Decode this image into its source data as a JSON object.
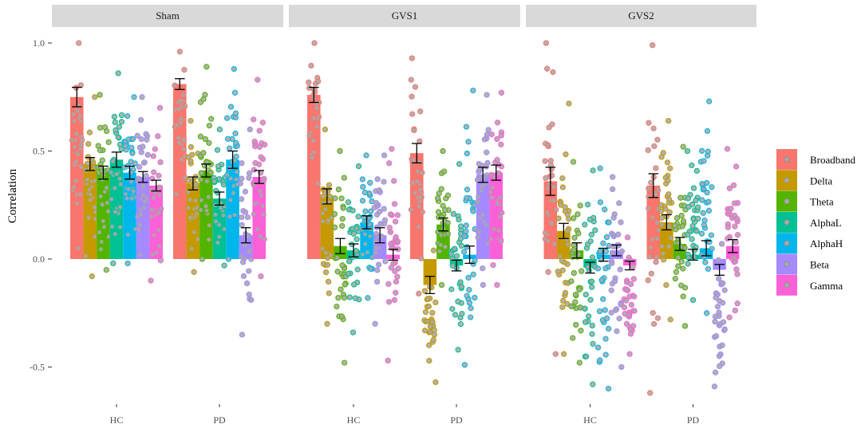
{
  "chart_data": {
    "type": "bar",
    "ylabel": "Correlation",
    "xlabel": "",
    "ylim": [
      -0.6,
      1.02
    ],
    "yticks": [
      -0.5,
      0.0,
      0.5,
      1.0
    ],
    "ytick_labels": [
      "-0.5",
      "0.0",
      "0.5",
      "1.0"
    ],
    "facets": [
      "Sham",
      "GVS1",
      "GVS2"
    ],
    "groups": [
      "HC",
      "PD"
    ],
    "bands": [
      "Broadband",
      "Delta",
      "Theta",
      "AlphaL",
      "AlphaH",
      "Beta",
      "Gamma"
    ],
    "colors": {
      "Broadband": "#F8766D",
      "Delta": "#C49A00",
      "Theta": "#53B400",
      "AlphaL": "#00C094",
      "AlphaH": "#00B6EB",
      "Beta": "#A58AFF",
      "Gamma": "#FB61D7"
    },
    "point_color": "#A9A9A9",
    "legend_position": "right",
    "series": [
      {
        "facet": "Sham",
        "group": "HC",
        "means": [
          0.75,
          0.44,
          0.4,
          0.46,
          0.4,
          0.38,
          0.34
        ],
        "errors": [
          0.045,
          0.03,
          0.03,
          0.035,
          0.03,
          0.025,
          0.025
        ],
        "ranges": [
          [
            0.05,
            1.0
          ],
          [
            -0.08,
            0.75
          ],
          [
            -0.05,
            0.76
          ],
          [
            -0.02,
            0.86
          ],
          [
            -0.02,
            0.75
          ],
          [
            0.02,
            0.75
          ],
          [
            -0.1,
            0.7
          ]
        ]
      },
      {
        "facet": "Sham",
        "group": "PD",
        "means": [
          0.81,
          0.35,
          0.41,
          0.28,
          0.46,
          0.11,
          0.38
        ],
        "errors": [
          0.025,
          0.03,
          0.03,
          0.03,
          0.04,
          0.035,
          0.03
        ],
        "ranges": [
          [
            0.3,
            0.96
          ],
          [
            -0.06,
            0.64
          ],
          [
            0.0,
            0.89
          ],
          [
            -0.03,
            0.6
          ],
          [
            0.0,
            0.88
          ],
          [
            -0.35,
            0.6
          ],
          [
            -0.08,
            0.83
          ]
        ]
      },
      {
        "facet": "GVS1",
        "group": "HC",
        "means": [
          0.76,
          0.29,
          0.06,
          0.04,
          0.17,
          0.11,
          0.02
        ],
        "errors": [
          0.035,
          0.035,
          0.035,
          0.03,
          0.03,
          0.035,
          0.025
        ],
        "ranges": [
          [
            0.35,
            1.0
          ],
          [
            -0.3,
            0.6
          ],
          [
            -0.48,
            0.5
          ],
          [
            -0.34,
            0.43
          ],
          [
            -0.18,
            0.48
          ],
          [
            -0.3,
            0.48
          ],
          [
            -0.47,
            0.51
          ]
        ]
      },
      {
        "facet": "GVS1",
        "group": "PD",
        "means": [
          0.49,
          -0.12,
          0.16,
          -0.03,
          0.02,
          0.39,
          0.4
        ],
        "errors": [
          0.045,
          0.04,
          0.03,
          0.025,
          0.04,
          0.035,
          0.035
        ],
        "ranges": [
          [
            -0.16,
            0.93
          ],
          [
            -0.57,
            0.04
          ],
          [
            -0.12,
            0.5
          ],
          [
            -0.42,
            0.44
          ],
          [
            -0.49,
            0.78
          ],
          [
            -0.12,
            0.76
          ],
          [
            -0.12,
            0.77
          ]
        ]
      },
      {
        "facet": "GVS2",
        "group": "HC",
        "means": [
          0.36,
          0.13,
          0.04,
          -0.04,
          0.02,
          0.04,
          -0.03
        ],
        "errors": [
          0.065,
          0.035,
          0.035,
          0.025,
          0.03,
          0.025,
          0.02
        ],
        "ranges": [
          [
            -0.44,
            1.0
          ],
          [
            -0.44,
            0.72
          ],
          [
            -0.48,
            0.45
          ],
          [
            -0.58,
            0.41
          ],
          [
            -0.6,
            0.42
          ],
          [
            -0.5,
            0.38
          ],
          [
            -0.44,
            0.1
          ]
        ]
      },
      {
        "facet": "GVS2",
        "group": "PD",
        "means": [
          0.34,
          0.17,
          0.07,
          0.02,
          0.05,
          -0.05,
          0.06
        ],
        "errors": [
          0.055,
          0.035,
          0.03,
          0.025,
          0.035,
          0.025,
          0.03
        ],
        "ranges": [
          [
            -0.62,
            0.99
          ],
          [
            -0.28,
            0.64
          ],
          [
            -0.31,
            0.52
          ],
          [
            -0.19,
            0.5
          ],
          [
            -0.25,
            0.73
          ],
          [
            -0.59,
            0.07
          ],
          [
            -0.27,
            0.51
          ]
        ]
      }
    ]
  }
}
